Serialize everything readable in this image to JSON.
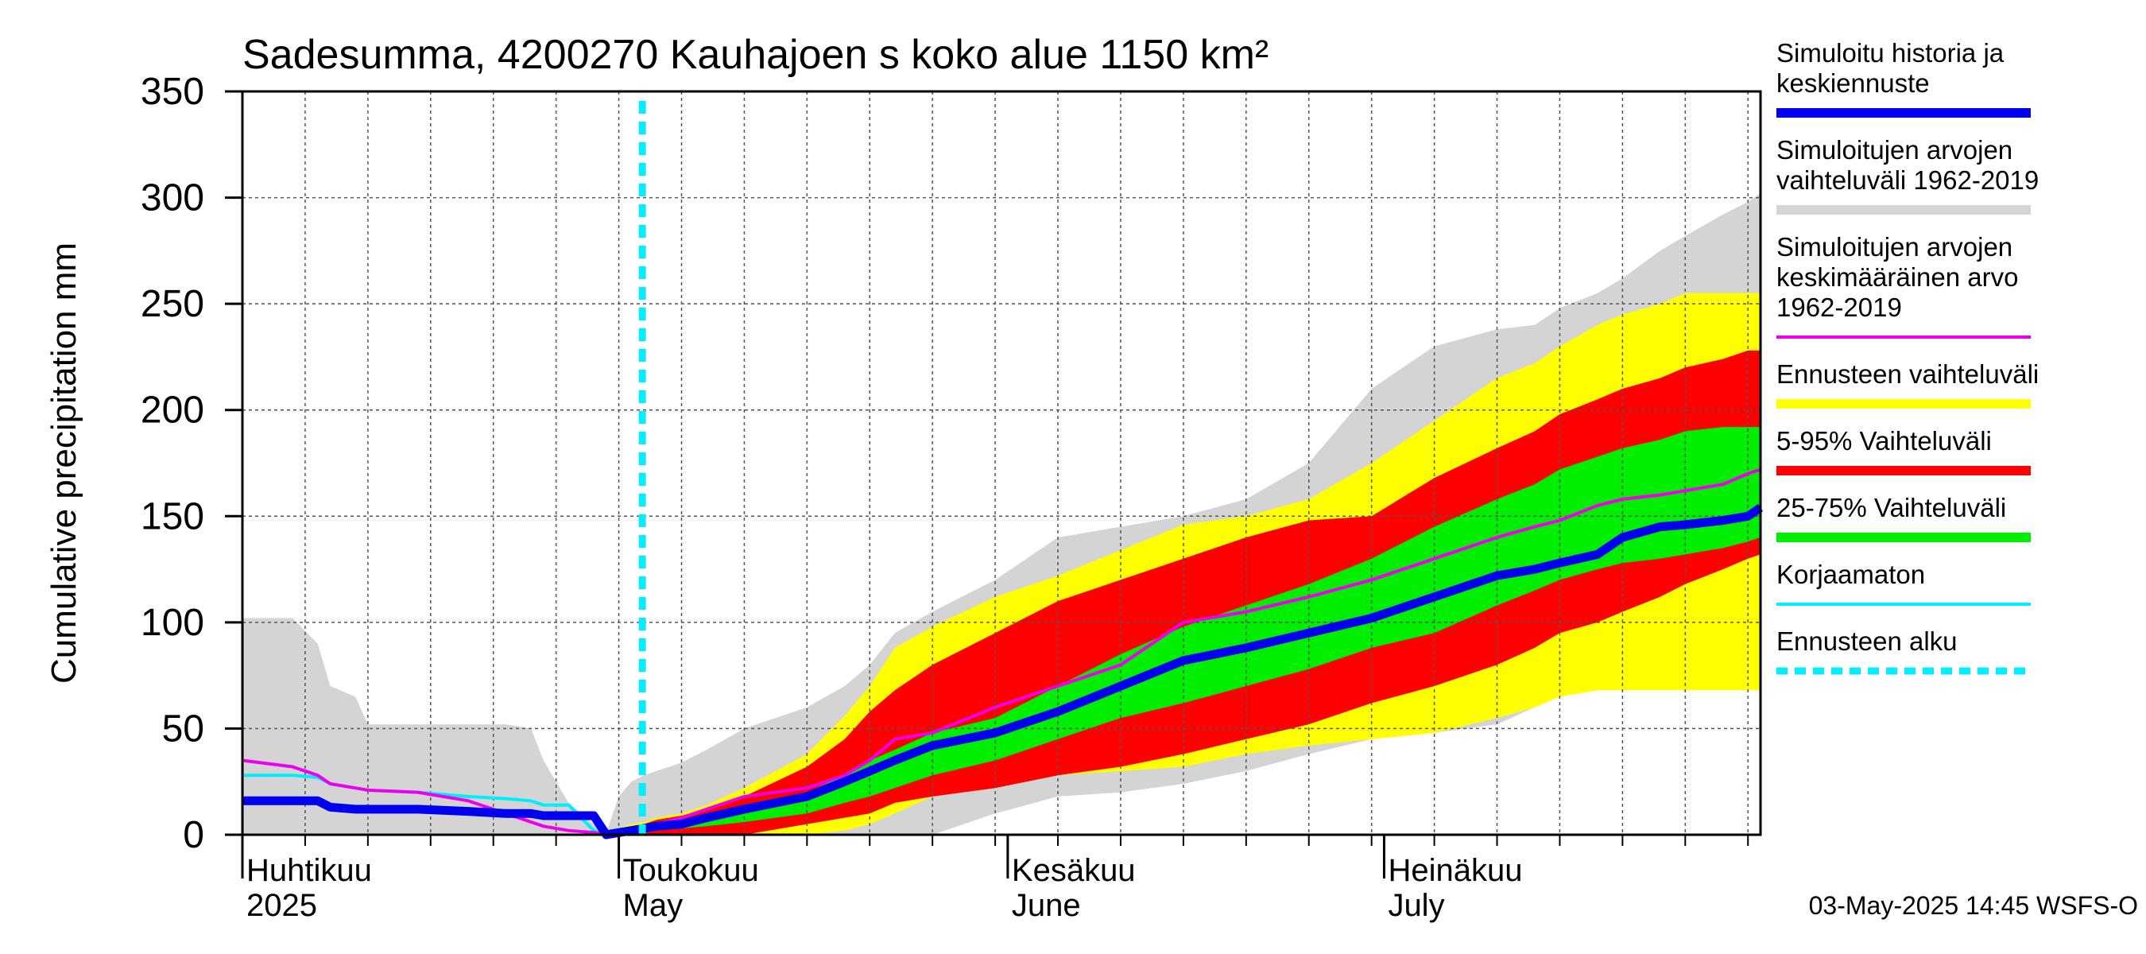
{
  "chart_data": {
    "type": "area",
    "title": "Sadesumma, 4200270 Kauhajoen s koko alue 1150 km²",
    "ylabel": "Cumulative precipitation   mm",
    "xlabel": "",
    "ylim": [
      0,
      350
    ],
    "yticks": [
      0,
      50,
      100,
      150,
      200,
      250,
      300,
      350
    ],
    "grid": true,
    "legend_placement": "right",
    "x_range": [
      "2025-04-01",
      "2025-07-31"
    ],
    "forecast_start": "2025-05-03",
    "month_labels": [
      {
        "date": "2025-04-01",
        "line1": "Huhtikuu",
        "line2": "2025"
      },
      {
        "date": "2025-05-01",
        "line1": "Toukokuu",
        "line2": "May"
      },
      {
        "date": "2025-06-01",
        "line1": "Kesäkuu",
        "line2": "June"
      },
      {
        "date": "2025-07-01",
        "line1": "Heinäkuu",
        "line2": "July"
      }
    ],
    "colors": {
      "history_range": "#d4d4d4",
      "forecast_range": "#ffff00",
      "p5_95": "#ff0000",
      "p25_75": "#00ee00",
      "mean": "#ee00ee",
      "simulated": "#0000ee",
      "uncorrected": "#00eeff",
      "forecast_start": "#00eeff"
    },
    "x_days": [
      0,
      4,
      6,
      7,
      9,
      10,
      14,
      18,
      21,
      23,
      24,
      26,
      28,
      29,
      30,
      31,
      32,
      33,
      35,
      37,
      40,
      45,
      48,
      50,
      52,
      55,
      60,
      65,
      70,
      75,
      80,
      85,
      90,
      95,
      100,
      103,
      105,
      108,
      110,
      113,
      115,
      118,
      120,
      121
    ],
    "series": [
      {
        "name": "Simuloitujen arvojen vaihteluväli 1962-2019 (max)",
        "values": [
          102,
          102,
          90,
          70,
          65,
          52,
          52,
          52,
          52,
          50,
          35,
          15,
          5,
          1,
          18,
          25,
          28,
          30,
          34,
          40,
          50,
          60,
          70,
          80,
          95,
          105,
          120,
          140,
          145,
          150,
          158,
          175,
          210,
          230,
          238,
          240,
          248,
          255,
          262,
          275,
          282,
          292,
          298,
          302
        ]
      },
      {
        "name": "Simuloitujen arvojen vaihteluväli 1962-2019 (min)",
        "values": [
          0,
          0,
          0,
          0,
          0,
          0,
          0,
          0,
          0,
          0,
          0,
          0,
          0,
          0,
          0,
          0,
          0,
          0,
          0,
          0,
          0,
          0,
          0,
          0,
          0,
          0,
          10,
          18,
          20,
          24,
          30,
          38,
          45,
          48,
          52,
          60,
          66,
          68,
          68,
          70,
          72,
          76,
          80,
          82
        ]
      },
      {
        "name": "Ennusteen vaihteluväli (max)",
        "values": [
          0,
          0,
          0,
          0,
          0,
          0,
          0,
          0,
          0,
          0,
          0,
          0,
          0,
          1,
          3,
          5,
          6,
          8,
          10,
          14,
          22,
          38,
          56,
          70,
          88,
          98,
          112,
          122,
          134,
          146,
          150,
          158,
          175,
          195,
          215,
          222,
          230,
          240,
          245,
          250,
          255,
          255,
          255,
          255
        ]
      },
      {
        "name": "Ennusteen vaihteluväli (min)",
        "values": [
          0,
          0,
          0,
          0,
          0,
          0,
          0,
          0,
          0,
          0,
          0,
          0,
          0,
          0,
          0,
          0,
          0,
          0,
          0,
          0,
          0,
          0,
          2,
          5,
          10,
          18,
          25,
          28,
          30,
          32,
          38,
          42,
          45,
          48,
          55,
          60,
          65,
          68,
          68,
          68,
          68,
          68,
          68,
          68
        ]
      },
      {
        "name": "5-95% Vaihteluväli (max)",
        "values": [
          0,
          0,
          0,
          0,
          0,
          0,
          0,
          0,
          0,
          0,
          0,
          0,
          0,
          1,
          2,
          4,
          5,
          7,
          9,
          12,
          18,
          32,
          45,
          58,
          68,
          80,
          95,
          110,
          120,
          130,
          140,
          148,
          150,
          168,
          182,
          190,
          198,
          205,
          210,
          215,
          220,
          224,
          228,
          228
        ]
      },
      {
        "name": "5-95% Vaihteluväli (min)",
        "values": [
          0,
          0,
          0,
          0,
          0,
          0,
          0,
          0,
          0,
          0,
          0,
          0,
          0,
          0,
          0,
          0,
          0,
          0,
          0,
          0,
          0,
          5,
          8,
          10,
          15,
          18,
          22,
          28,
          32,
          38,
          45,
          52,
          62,
          70,
          80,
          88,
          95,
          100,
          105,
          112,
          118,
          125,
          130,
          132
        ]
      },
      {
        "name": "25-75% Vaihteluväli (max)",
        "values": [
          0,
          0,
          0,
          0,
          0,
          0,
          0,
          0,
          0,
          0,
          0,
          0,
          0,
          1,
          2,
          3,
          4,
          5,
          7,
          9,
          12,
          20,
          28,
          35,
          40,
          48,
          55,
          70,
          85,
          98,
          108,
          118,
          130,
          145,
          158,
          165,
          172,
          178,
          182,
          186,
          190,
          192,
          192,
          192
        ]
      },
      {
        "name": "25-75% Vaihteluväli (min)",
        "values": [
          0,
          0,
          0,
          0,
          0,
          0,
          0,
          0,
          0,
          0,
          0,
          0,
          0,
          0,
          0,
          0,
          1,
          2,
          3,
          4,
          6,
          10,
          15,
          18,
          22,
          28,
          35,
          45,
          55,
          62,
          70,
          78,
          88,
          95,
          108,
          115,
          120,
          125,
          128,
          130,
          132,
          135,
          138,
          140
        ]
      },
      {
        "name": "Simuloitujen arvojen keskimääräinen arvo 1962-2019",
        "values": [
          35,
          32,
          28,
          24,
          22,
          21,
          20,
          16,
          10,
          6,
          4,
          2,
          1,
          0,
          1,
          2,
          3,
          5,
          8,
          12,
          18,
          22,
          28,
          35,
          45,
          48,
          60,
          70,
          80,
          100,
          105,
          112,
          120,
          130,
          140,
          145,
          148,
          155,
          158,
          160,
          162,
          165,
          170,
          172
        ]
      },
      {
        "name": "Simuloitu historia ja keskiennuste",
        "values": [
          16,
          16,
          16,
          13,
          12,
          12,
          12,
          11,
          10,
          10,
          9,
          9,
          9,
          0,
          1,
          2,
          3,
          4,
          5,
          8,
          12,
          18,
          25,
          30,
          35,
          42,
          48,
          58,
          70,
          82,
          88,
          95,
          102,
          112,
          122,
          125,
          128,
          132,
          140,
          145,
          146,
          148,
          150,
          154
        ]
      },
      {
        "name": "Korjaamaton",
        "values": [
          28,
          28,
          27,
          24,
          22,
          21,
          20,
          18,
          17,
          16,
          14,
          14,
          2,
          0
        ]
      }
    ]
  },
  "legend": {
    "items": [
      {
        "lines": [
          "Simuloitu historia ja",
          "keskiennuste"
        ],
        "color": "#0000ee",
        "style": "thick"
      },
      {
        "lines": [
          "Simuloitujen arvojen",
          "vaihteluväli 1962-2019"
        ],
        "color": "#d4d4d4",
        "style": "thick"
      },
      {
        "lines": [
          "Simuloitujen arvojen",
          "keskimääräinen arvo",
          "   1962-2019"
        ],
        "color": "#ee00ee",
        "style": "thin"
      },
      {
        "lines": [
          "Ennusteen vaihteluväli"
        ],
        "color": "#ffff00",
        "style": "thick"
      },
      {
        "lines": [
          "5-95% Vaihteluväli"
        ],
        "color": "#ff0000",
        "style": "thick"
      },
      {
        "lines": [
          "25-75% Vaihteluväli"
        ],
        "color": "#00ee00",
        "style": "thick"
      },
      {
        "lines": [
          "Korjaamaton"
        ],
        "color": "#00eeff",
        "style": "thin"
      },
      {
        "lines": [
          "Ennusteen alku"
        ],
        "color": "#00eeff",
        "style": "dashed"
      }
    ]
  },
  "footer": {
    "timestamp": "03-May-2025 14:45 WSFS-O"
  }
}
